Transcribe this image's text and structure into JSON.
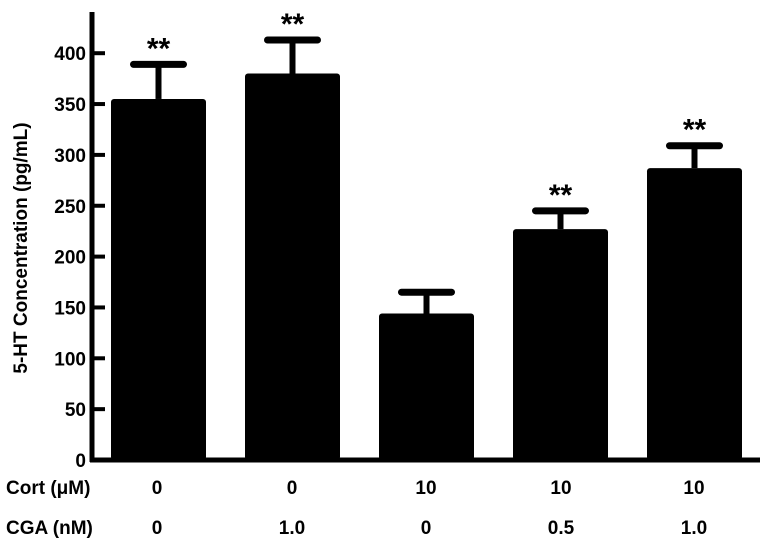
{
  "chart_data": {
    "type": "bar",
    "title": "",
    "xlabel": "",
    "ylabel": "5-HT Concentration (pg/mL)",
    "ylim": [
      0,
      440
    ],
    "yticks": [
      0,
      50,
      100,
      150,
      200,
      250,
      300,
      350,
      400
    ],
    "grid": false,
    "legend": null,
    "categories": [
      "Cort 0 / CGA 0",
      "Cort 0 / CGA 1.0",
      "Cort 10 / CGA 0",
      "Cort 10 / CGA 0.5",
      "Cort 10 / CGA 1.0"
    ],
    "values": [
      355,
      380,
      144,
      227,
      287
    ],
    "error_upper": [
      34,
      33,
      21,
      18,
      22
    ],
    "annotations": [
      "**",
      "**",
      "",
      "**",
      "**"
    ],
    "bar_color": "#000000",
    "condition_rows": [
      {
        "label": "Cort (μM)",
        "values": [
          "0",
          "0",
          "10",
          "10",
          "10"
        ]
      },
      {
        "label": "CGA (nM)",
        "values": [
          "0",
          "1.0",
          "0",
          "0.5",
          "1.0"
        ]
      }
    ]
  }
}
